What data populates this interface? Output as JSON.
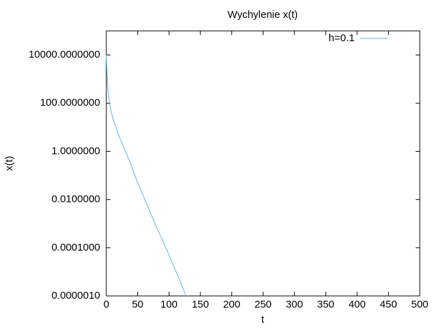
{
  "chart_data": {
    "type": "line",
    "title": "Wychylenie x(t)",
    "x_label": "t",
    "y_label": "x(t)",
    "x": [
      0,
      1,
      2,
      5,
      10,
      20,
      30,
      40,
      50,
      60,
      70,
      80,
      90,
      100,
      110,
      120,
      127
    ],
    "series": [
      {
        "name": "h=0.1",
        "color": "#56b4e9",
        "values": [
          10000,
          2000,
          600,
          100,
          25,
          4.6,
          1.1,
          0.25,
          0.05,
          0.012,
          0.003,
          0.0007,
          0.0002,
          5e-05,
          1.2e-05,
          3e-06,
          1e-06
        ]
      }
    ],
    "xlim": [
      0,
      500
    ],
    "xticks": [
      0,
      50,
      100,
      150,
      200,
      250,
      300,
      350,
      400,
      450,
      500
    ],
    "ylim": [
      1e-06,
      100000
    ],
    "y_log": true,
    "yticks": [
      {
        "value": 1e-06,
        "label": "0.0000010"
      },
      {
        "value": 0.0001,
        "label": "0.0001000"
      },
      {
        "value": 0.01,
        "label": "0.0100000"
      },
      {
        "value": 1,
        "label": "1.0000000"
      },
      {
        "value": 100,
        "label": "100.0000000"
      },
      {
        "value": 10000,
        "label": "10000.0000000"
      }
    ],
    "legend": "top-right"
  }
}
